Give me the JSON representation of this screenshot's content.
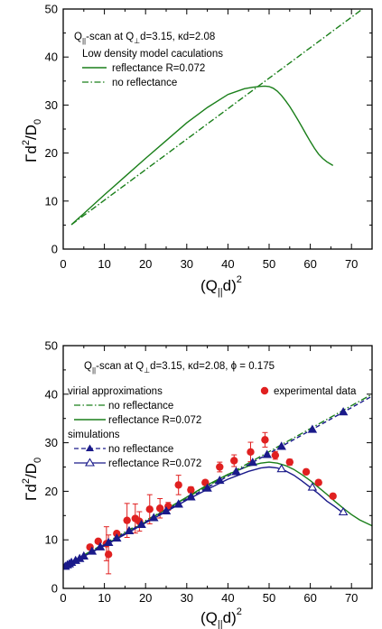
{
  "chart_data": [
    {
      "type": "line",
      "title": "",
      "annotation": {
        "q": "Q",
        "q_sub": "||",
        "mid": "-scan at Q",
        "perp_sub": "⊥",
        "rest": "d=3.15, κd=2.08"
      },
      "xlabel": {
        "main": "(Q",
        "sub": "||",
        "tail": "d)",
        "sup": "2"
      },
      "ylabel": {
        "main": "Γd",
        "sup": "2",
        "tail": "/D",
        "sub": "0"
      },
      "xlim": [
        0,
        75
      ],
      "ylim": [
        0,
        50
      ],
      "xticks": [
        "0",
        "10",
        "20",
        "30",
        "40",
        "50",
        "60",
        "70"
      ],
      "yticks": [
        "0",
        "10",
        "20",
        "30",
        "40",
        "50"
      ],
      "legend_title": "Low density model caculations",
      "legend_placement": "top-left",
      "series": [
        {
          "name": "reflectance R=0.072",
          "color": "#1a7f1a",
          "style": "solid",
          "x": [
            2,
            5,
            10,
            15,
            20,
            25,
            30,
            35,
            40,
            44,
            46,
            48,
            49,
            50,
            51,
            52,
            53,
            54,
            55,
            56,
            57,
            58,
            59,
            60,
            61,
            62,
            63,
            64,
            65.5
          ],
          "y": [
            5.1,
            7.4,
            11.3,
            15.1,
            18.9,
            22.6,
            26.3,
            29.5,
            32.2,
            33.4,
            33.7,
            33.9,
            33.95,
            33.85,
            33.5,
            32.9,
            32.0,
            30.9,
            29.7,
            28.3,
            26.9,
            25.4,
            23.9,
            22.4,
            21.0,
            19.8,
            18.9,
            18.2,
            17.4
          ]
        },
        {
          "name": "no reflectance",
          "color": "#1a7f1a",
          "style": "dashdot",
          "x": [
            2,
            73
          ],
          "y": [
            5.1,
            50.2
          ]
        }
      ]
    },
    {
      "type": "line",
      "title": "",
      "annotation": {
        "q": "Q",
        "q_sub": "||",
        "mid": "-scan at Q",
        "perp_sub": "⊥",
        "rest": "d=3.15, κd=2.08, ϕ = 0.175"
      },
      "xlabel": {
        "main": "(Q",
        "sub": "||",
        "tail": "d)",
        "sup": "2"
      },
      "ylabel": {
        "main": "Γd",
        "sup": "2",
        "tail": "/D",
        "sub": "0"
      },
      "xlim": [
        0,
        75
      ],
      "ylim": [
        0,
        50
      ],
      "xticks": [
        "0",
        "10",
        "20",
        "30",
        "40",
        "50",
        "60",
        "70"
      ],
      "yticks": [
        "0",
        "10",
        "20",
        "30",
        "40",
        "50"
      ],
      "legend_placement": "top-left",
      "legend_groups": [
        "virial approximations",
        "simulations"
      ],
      "series": [
        {
          "name": "no reflectance",
          "group": "virial approximations",
          "color": "#1a7f1a",
          "style": "dashdot",
          "x": [
            0,
            75
          ],
          "y": [
            4.5,
            40.0
          ]
        },
        {
          "name": "reflectance R=0.072",
          "group": "virial approximations",
          "color": "#1a7f1a",
          "style": "solid",
          "x": [
            0,
            5,
            10,
            15,
            20,
            25,
            30,
            35,
            40,
            45,
            48,
            50,
            52,
            54,
            56,
            58,
            60,
            62,
            64,
            66,
            68,
            70,
            72,
            75
          ],
          "y": [
            4.5,
            6.7,
            8.9,
            11.3,
            13.7,
            16.3,
            18.8,
            21.3,
            23.5,
            25.2,
            25.8,
            26.0,
            25.8,
            25.3,
            24.5,
            23.4,
            22.2,
            20.8,
            19.4,
            17.9,
            16.5,
            15.2,
            14.1,
            12.9
          ]
        },
        {
          "name": "experimental data",
          "color": "#e02020",
          "style": "marker-circle",
          "x": [
            6.5,
            8.5,
            10.5,
            11,
            13,
            15.5,
            17.5,
            18.5,
            21,
            23.5,
            25.5,
            28,
            31,
            34.5,
            38,
            41.5,
            45.5,
            49,
            51.5,
            55,
            59,
            62,
            65.5
          ],
          "y": [
            8.5,
            9.7,
            9.2,
            7.0,
            11.3,
            14.0,
            14.4,
            13.8,
            16.3,
            16.5,
            16.9,
            21.3,
            20.3,
            21.8,
            25.0,
            26.3,
            28.1,
            30.6,
            27.4,
            26.0,
            24.0,
            21.8,
            19.0
          ],
          "err": [
            0,
            0,
            3.5,
            4.0,
            0,
            3.5,
            3.0,
            2.0,
            3.0,
            2.0,
            0.8,
            2.0,
            0.6,
            0.5,
            1.0,
            1.2,
            2.0,
            1.5,
            0.8,
            0.6,
            0.5,
            0.5,
            0.4
          ]
        },
        {
          "name": "no reflectance",
          "group": "simulations",
          "color": "#1a1a8a",
          "style": "dash-filled-triangle",
          "x": [
            0,
            75
          ],
          "y": [
            4.3,
            39.6
          ],
          "marker_x": [
            0.5,
            1,
            1.5,
            2,
            3,
            4,
            5,
            7,
            9,
            11,
            13,
            16,
            19,
            22,
            25,
            28,
            31,
            35,
            38,
            42,
            46,
            49.5,
            53,
            60.5,
            68
          ],
          "marker_y": [
            4.5,
            4.8,
            5.0,
            5.3,
            5.7,
            6.1,
            6.6,
            7.6,
            8.5,
            9.4,
            10.3,
            11.8,
            13.1,
            14.5,
            15.9,
            17.3,
            18.8,
            20.6,
            22.2,
            24.0,
            25.9,
            27.5,
            29.2,
            32.7,
            36.3
          ]
        },
        {
          "name": "reflectance R=0.072",
          "group": "simulations",
          "color": "#1a1a8a",
          "style": "solid-open-triangle",
          "x": [
            0,
            5,
            10,
            15,
            20,
            25,
            30,
            35,
            40,
            45,
            48,
            50,
            52,
            54,
            56,
            58,
            60,
            62,
            64,
            66,
            68
          ],
          "y": [
            4.3,
            6.6,
            8.8,
            11.1,
            13.5,
            15.8,
            18.2,
            20.4,
            22.5,
            24.1,
            24.8,
            25.0,
            24.8,
            24.2,
            23.3,
            22.1,
            20.8,
            19.5,
            18.0,
            16.8,
            15.5
          ],
          "marker_x": [
            53,
            60.5,
            68
          ],
          "marker_y": [
            24.6,
            20.8,
            15.7
          ]
        }
      ]
    }
  ]
}
